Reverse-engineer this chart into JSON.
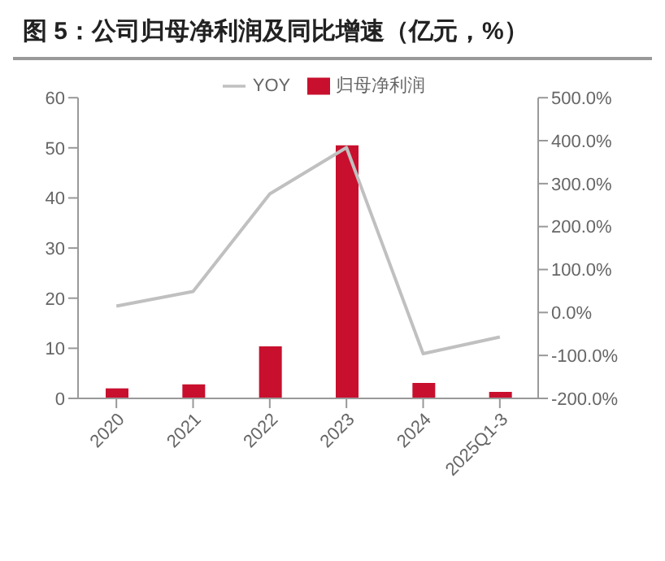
{
  "chart_data": {
    "type": "bar",
    "title": "图 5：公司归母净利润及同比增速（亿元，%）",
    "categories": [
      "2020",
      "2021",
      "2022",
      "2023",
      "2024",
      "2025Q1-3"
    ],
    "series": [
      {
        "name": "归母净利润",
        "color": "#c8102e",
        "values": [
          2.0,
          2.8,
          10.4,
          50.5,
          3.1,
          1.3
        ]
      },
      {
        "name": "YOY",
        "type": "line",
        "axis": "y2",
        "color": "#c0c0c0",
        "values": [
          15,
          49,
          276,
          384,
          -96,
          -57
        ]
      }
    ],
    "ylim": [
      0,
      60
    ],
    "yticks": [
      0,
      10,
      20,
      30,
      40,
      50,
      60
    ],
    "y2lim": [
      -200,
      500
    ],
    "y2ticks": [
      {
        "value": -200,
        "label": "-200.0%"
      },
      {
        "value": -100,
        "label": "-100.0%"
      },
      {
        "value": 0,
        "label": "0.0%"
      },
      {
        "value": 100,
        "label": "100.0%"
      },
      {
        "value": 200,
        "label": "200.0%"
      },
      {
        "value": 300,
        "label": "300.0%"
      },
      {
        "value": 400,
        "label": "400.0%"
      },
      {
        "value": 500,
        "label": "500.0%"
      }
    ],
    "legend": "top",
    "grid": false,
    "marker": "none"
  }
}
